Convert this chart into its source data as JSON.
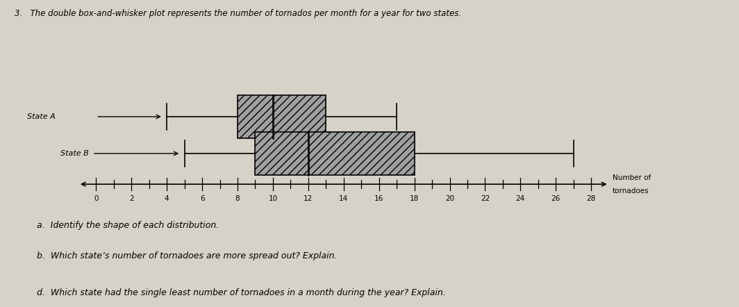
{
  "state_A": {
    "min": 4,
    "q1": 8,
    "median": 10,
    "q3": 13,
    "max": 17
  },
  "state_B": {
    "min": 5,
    "q1": 9,
    "median": 12,
    "q3": 18,
    "max": 27
  },
  "x_min": 0,
  "x_max": 28,
  "x_ticks": [
    0,
    2,
    4,
    6,
    8,
    10,
    12,
    14,
    16,
    18,
    20,
    22,
    24,
    26,
    28
  ],
  "label_A": "State A",
  "label_B": "State B",
  "xlabel_line1": "Number of",
  "xlabel_line2": "tornadoes",
  "box_color": "#a0a0a0",
  "box_hatch": "///",
  "title": "3.   The double box-and-whisker plot represents the number of tornados per month for a year for two states.",
  "background_color": "#d6d2c8",
  "fig_width": 10.64,
  "fig_height": 4.42,
  "q_a": "a.  Identify the shape of each distribution.",
  "q_b": "b.  Which state’s number of tornadoes are more spread out? Explain.",
  "q_d": "d.  Which state had the single least number of tornadoes in a month during the year? Explain."
}
